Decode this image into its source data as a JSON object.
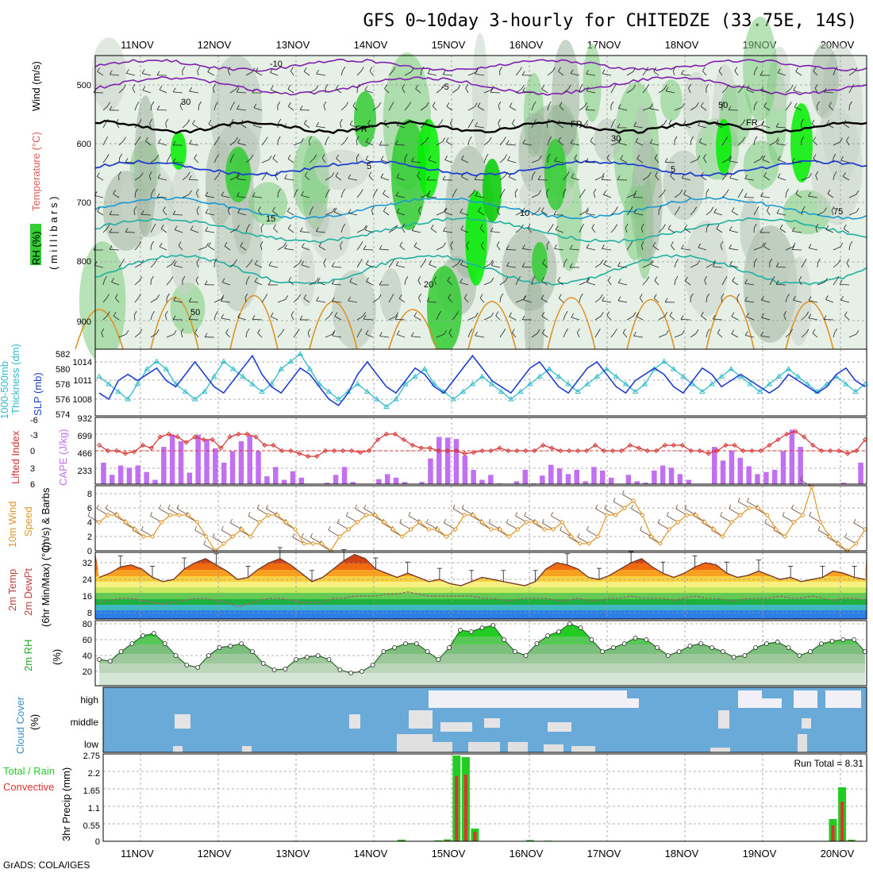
{
  "title": "GFS 0~10day 3-hourly for CHITEDZE (33.75E, 14S)",
  "credit": "GrADS: COLA/IGES",
  "dates": [
    "11NOV",
    "12NOV",
    "13NOV",
    "14NOV",
    "15NOV",
    "16NOV",
    "17NOV",
    "18NOV",
    "19NOV",
    "20NOV"
  ],
  "colors": {
    "rh_green": "#33cc33",
    "rh_bright": "#00ee00",
    "rh_gray": "#b8c4b8",
    "slp": "#1f3fcf",
    "thickness": "#33bbcc",
    "cape": "#c070f0",
    "lifted": "#d83030",
    "wind10": "#e0962a",
    "cloud_bg": "#6aaad8",
    "cloud_fill": "#e4e4e4",
    "precip_total": "#22cc22",
    "precip_conv": "#e03030"
  },
  "panels": {
    "upper": {
      "label_rh": "RH (%)",
      "label_temp": "Temperature (°C)",
      "label_wind": "Wind (m/s)",
      "label_unit": "( m i l l i b a r s )",
      "yticks": [
        "500",
        "600",
        "700",
        "800",
        "900"
      ],
      "contour_labels": [
        "-10",
        "-5",
        "FR",
        "FR",
        "FR",
        "-5",
        "-5",
        "5",
        "10",
        "15",
        "20",
        "50",
        "50",
        "30",
        "30",
        "50",
        "50",
        "75"
      ]
    },
    "slp": {
      "label_thick": "Thickness (dm)",
      "label_thick2": "1000-500mb",
      "label_slp": "SLP (mb)",
      "left_ticks": [
        "582",
        "580",
        "578",
        "576",
        "574"
      ],
      "right_ticks": [
        "1014",
        "1011",
        "1008"
      ]
    },
    "cape": {
      "label_li": "Lifted Index",
      "label_cape": "CAPE (J/kg)",
      "left_ticks": [
        "-6",
        "-3",
        "0",
        "3",
        "6"
      ],
      "right_ticks": [
        "932",
        "699",
        "466",
        "233"
      ]
    },
    "wind10": {
      "label_a": "10m Wind",
      "label_b": "Speed",
      "label_c": "(m/s) & Barbs",
      "yticks": [
        "8",
        "6",
        "4",
        "2",
        "0"
      ]
    },
    "temp": {
      "label_a": "2m Temp",
      "label_b": "2m DewPt",
      "label_c": "(6hr Min/Max) (°C)",
      "yticks": [
        "32",
        "24",
        "16",
        "8"
      ]
    },
    "rh2m": {
      "label": "2m RH",
      "unit": "(%)",
      "yticks": [
        "80",
        "60",
        "40",
        "20"
      ]
    },
    "cloud": {
      "label": "Cloud Cover",
      "unit": "(%)",
      "levels": [
        "high",
        "middle",
        "low"
      ]
    },
    "precip": {
      "label_a": "Total / Rain",
      "label_b": "Convective",
      "label_c": "3hr Precip (mm)",
      "yticks": [
        "2.75",
        "2.2",
        "1.65",
        "1.1",
        "0.55",
        "0"
      ],
      "run_total": "Run Total = 8.31"
    }
  },
  "chart_data": {
    "type": "meteogram",
    "x_dates": [
      "11NOV",
      "12NOV",
      "13NOV",
      "14NOV",
      "15NOV",
      "16NOV",
      "17NOV",
      "18NOV",
      "19NOV",
      "20NOV"
    ],
    "slp_mb": [
      1009,
      1008,
      1011,
      1012,
      1011,
      1012,
      1013,
      1011,
      1010,
      1012,
      1014,
      1012,
      1010,
      1009,
      1011,
      1013,
      1015,
      1012,
      1010,
      1009,
      1011,
      1013,
      1012,
      1010,
      1008,
      1007,
      1009,
      1012,
      1014,
      1012,
      1010,
      1009,
      1011,
      1013,
      1012,
      1010,
      1009,
      1011,
      1013,
      1015,
      1013,
      1011,
      1010,
      1009,
      1011,
      1013,
      1014,
      1012,
      1010,
      1009,
      1011,
      1013,
      1014,
      1012,
      1010,
      1009,
      1011,
      1012,
      1013,
      1012,
      1010,
      1009,
      1011,
      1013,
      1012,
      1010,
      1011,
      1012,
      1011,
      1010,
      1009,
      1010,
      1012,
      1011,
      1010,
      1009,
      1010,
      1012,
      1013,
      1011,
      1010
    ],
    "thickness_dm": [
      579,
      578,
      577,
      576,
      578,
      580,
      581,
      580,
      578,
      577,
      576,
      577,
      579,
      581,
      580,
      579,
      578,
      577,
      578,
      580,
      581,
      582,
      580,
      578,
      577,
      576,
      577,
      578,
      577,
      576,
      575,
      576,
      578,
      579,
      580,
      578,
      577,
      576,
      577,
      578,
      579,
      578,
      577,
      576,
      577,
      578,
      579,
      580,
      579,
      578,
      577,
      578,
      579,
      580,
      579,
      578,
      577,
      578,
      580,
      581,
      580,
      579,
      578,
      577,
      578,
      579,
      580,
      579,
      578,
      577,
      578,
      579,
      580,
      579,
      578,
      577,
      578,
      579,
      578,
      577,
      578
    ],
    "cape_jkg": [
      300,
      130,
      260,
      230,
      260,
      170,
      60,
      520,
      690,
      600,
      160,
      690,
      620,
      500,
      300,
      460,
      600,
      680,
      460,
      110,
      240,
      60,
      180,
      90,
      0,
      0,
      20,
      130,
      240,
      30,
      0,
      0,
      70,
      140,
      90,
      30,
      0,
      30,
      360,
      660,
      650,
      630,
      400,
      200,
      60,
      130,
      10,
      0,
      40,
      200,
      10,
      120,
      270,
      220,
      140,
      200,
      40,
      240,
      190,
      90,
      0,
      130,
      40,
      20,
      190,
      260,
      230,
      140,
      60,
      0,
      0,
      520,
      330,
      470,
      370,
      250,
      140,
      170,
      200,
      460,
      760,
      520,
      0,
      0,
      0,
      0,
      20,
      0,
      300
    ],
    "lifted_index": [
      -1,
      0,
      0,
      0.5,
      0.2,
      -1,
      -0.5,
      -2.5,
      -3,
      -2.5,
      -1.5,
      -2.5,
      -2,
      -2,
      -0.5,
      -2.5,
      -3,
      -3,
      -2.5,
      -1,
      -1,
      0,
      0,
      0.5,
      1,
      1,
      0,
      0,
      0,
      0,
      0.3,
      0,
      -2,
      -3,
      -3,
      -2,
      -1,
      -0.5,
      -0.5,
      0,
      0,
      0,
      0.5,
      0.3,
      0,
      0,
      -0.5,
      0,
      0,
      0,
      0,
      -1,
      -0.5,
      0,
      0,
      0,
      0,
      -1,
      0,
      0,
      0,
      -1,
      -0.5,
      0,
      0,
      -1,
      -1,
      -1,
      0,
      0,
      0.5,
      0,
      -1,
      -1,
      0,
      0,
      0,
      -1,
      -2,
      -3,
      -3.5,
      -2.5,
      -1,
      0,
      0,
      0,
      0.5,
      0,
      -2
    ],
    "wind10_ms": [
      4,
      5,
      5,
      4,
      3,
      2,
      2,
      4,
      5,
      5,
      5,
      4,
      2,
      0,
      1,
      2,
      3,
      2,
      4,
      5,
      5,
      4,
      3,
      1,
      1,
      1,
      0,
      2,
      3,
      4,
      5,
      5,
      4,
      3,
      2,
      3,
      4,
      3,
      3,
      2,
      3,
      5,
      5,
      4,
      3,
      3,
      2,
      3,
      4,
      4,
      3,
      3,
      4,
      2,
      1,
      1,
      2,
      5,
      5,
      6,
      7,
      5,
      2,
      1,
      3,
      4,
      5,
      5,
      4,
      3,
      2,
      4,
      5,
      6,
      6,
      5,
      3,
      2,
      4,
      5,
      9,
      4,
      2,
      1,
      0,
      1,
      3
    ],
    "temp2m_c": [
      24,
      26,
      29,
      30,
      28,
      24,
      22,
      23,
      28,
      31,
      33,
      30,
      27,
      23,
      24,
      28,
      31,
      33,
      30,
      26,
      22,
      24,
      28,
      32,
      35,
      33,
      28,
      26,
      24,
      26,
      24,
      22,
      23,
      21,
      20,
      22,
      24,
      23,
      22,
      21,
      20,
      22,
      28,
      31,
      30,
      28,
      24,
      23,
      25,
      28,
      31,
      33,
      29,
      26,
      24,
      26,
      29,
      31,
      30,
      26,
      24,
      25,
      27,
      25,
      23,
      24,
      22,
      23,
      24,
      27,
      26,
      24,
      23
    ],
    "dewpt2m_c": [
      12,
      13,
      14,
      14,
      13,
      12,
      11,
      12,
      13,
      14,
      14,
      13,
      12,
      10,
      11,
      13,
      14,
      14,
      13,
      12,
      12,
      12,
      14,
      14,
      15,
      15,
      15,
      16,
      16,
      17,
      16,
      15,
      15,
      15,
      15,
      15,
      14,
      14,
      13,
      13,
      14,
      14,
      14,
      13,
      13,
      14,
      13,
      13,
      14,
      14,
      15,
      14,
      14,
      14,
      13,
      14,
      15,
      14,
      14,
      13,
      13,
      14,
      14,
      14,
      15,
      14,
      14,
      15,
      14,
      13,
      14,
      14,
      13
    ],
    "rh2m_pct": [
      35,
      33,
      45,
      55,
      65,
      68,
      55,
      40,
      28,
      25,
      40,
      50,
      52,
      55,
      45,
      30,
      22,
      23,
      35,
      38,
      40,
      35,
      22,
      18,
      20,
      28,
      45,
      50,
      55,
      55,
      45,
      35,
      50,
      72,
      70,
      75,
      78,
      60,
      45,
      40,
      55,
      65,
      70,
      80,
      75,
      60,
      45,
      50,
      55,
      62,
      60,
      50,
      40,
      45,
      52,
      55,
      50,
      45,
      38,
      40,
      50,
      55,
      57,
      50,
      40,
      45,
      55,
      58,
      60,
      60,
      45
    ],
    "precip_total_mm": [
      0,
      0,
      0,
      0,
      0,
      0,
      0,
      0,
      0,
      0,
      0,
      0,
      0,
      0,
      0,
      0,
      0,
      0,
      0,
      0,
      0,
      0,
      0,
      0,
      0,
      0,
      0,
      0,
      0,
      0,
      0,
      0,
      0.05,
      0,
      0,
      0,
      0.03,
      0.06,
      2.7,
      2.65,
      0.4,
      0,
      0,
      0,
      0,
      0,
      0.04,
      0,
      0.02,
      0,
      0,
      0,
      0,
      0,
      0,
      0,
      0,
      0,
      0,
      0,
      0,
      0,
      0,
      0,
      0,
      0,
      0,
      0,
      0,
      0,
      0,
      0,
      0,
      0,
      0,
      0,
      0,
      0,
      0,
      0.7,
      1.7,
      0.05,
      0
    ],
    "precip_conv_mm": [
      0,
      0,
      0,
      0,
      0,
      0,
      0,
      0,
      0,
      0,
      0,
      0,
      0,
      0,
      0,
      0,
      0,
      0,
      0,
      0,
      0,
      0,
      0,
      0,
      0,
      0,
      0,
      0,
      0,
      0,
      0,
      0,
      0.02,
      0,
      0,
      0,
      0.01,
      0.03,
      2.05,
      2.1,
      0.3,
      0,
      0,
      0,
      0,
      0,
      0.02,
      0,
      0.01,
      0,
      0,
      0,
      0,
      0,
      0,
      0,
      0,
      0,
      0,
      0,
      0,
      0,
      0,
      0,
      0,
      0,
      0,
      0,
      0,
      0,
      0,
      0,
      0,
      0,
      0,
      0,
      0,
      0,
      0,
      0.5,
      1.25,
      0.03,
      0
    ],
    "run_total_mm": 8.31
  }
}
